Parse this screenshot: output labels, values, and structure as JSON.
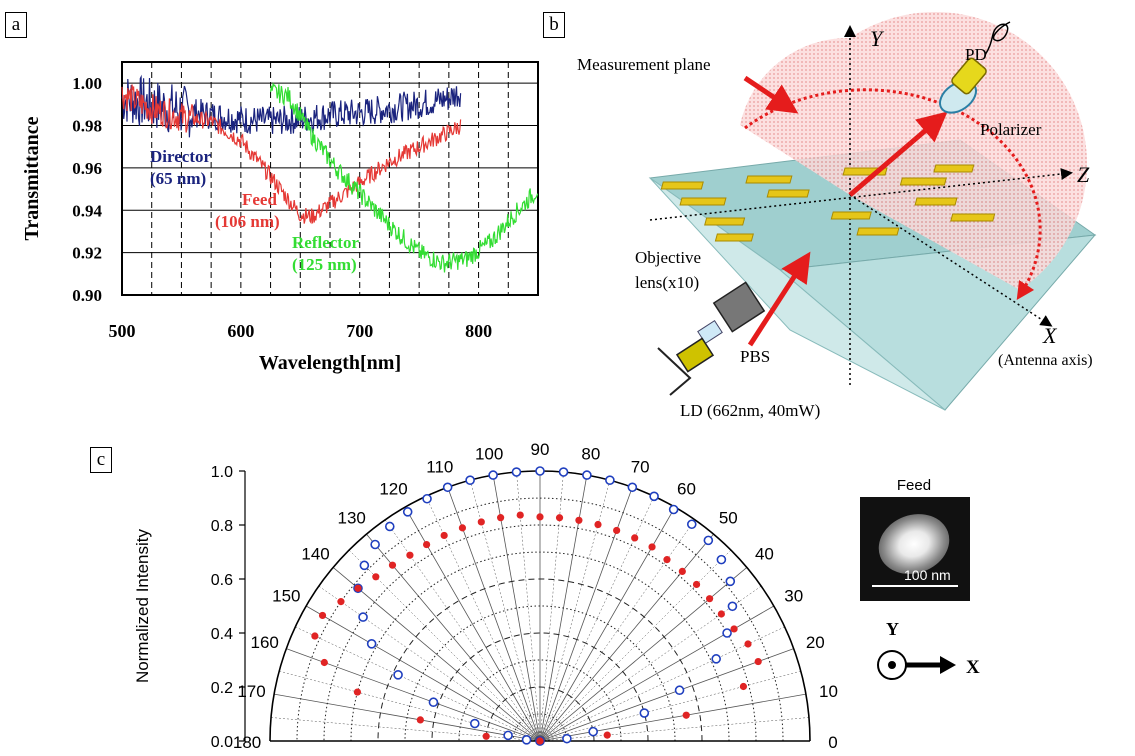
{
  "panels": {
    "a": {
      "label": "a",
      "chart_data": {
        "type": "line",
        "xlabel": "Wavelength[nm]",
        "ylabel": "Transmittance",
        "xlim": [
          500,
          850
        ],
        "ylim": [
          0.9,
          1.01
        ],
        "xticks": [
          "500",
          "600",
          "700",
          "800"
        ],
        "yticks": [
          "0.90",
          "0.92",
          "0.94",
          "0.96",
          "0.98",
          "1.00"
        ],
        "grid": true,
        "series": [
          {
            "name": "Director",
            "annotation": [
              "Director",
              "(65 nm)"
            ],
            "color": "#1a237e",
            "x": [
              500,
              525,
              550,
              575,
              600,
              625,
              650,
              675,
              700,
              725,
              750,
              775,
              785
            ],
            "y": [
              0.993,
              0.99,
              0.987,
              0.985,
              0.983,
              0.982,
              0.983,
              0.985,
              0.986,
              0.988,
              0.99,
              0.993,
              0.996
            ]
          },
          {
            "name": "Feed",
            "annotation": [
              "Feed",
              "(106 nm)"
            ],
            "color": "#e53935",
            "x": [
              500,
              525,
              550,
              575,
              600,
              625,
              640,
              650,
              660,
              675,
              700,
              725,
              750,
              775,
              785
            ],
            "y": [
              0.995,
              0.988,
              0.984,
              0.982,
              0.973,
              0.956,
              0.945,
              0.938,
              0.937,
              0.943,
              0.953,
              0.963,
              0.97,
              0.977,
              0.98
            ]
          },
          {
            "name": "Reflector",
            "annotation": [
              "Reflector",
              "(125 nm)"
            ],
            "color": "#33dd33",
            "x": [
              625,
              640,
              660,
              680,
              700,
              725,
              750,
              770,
              790,
              810,
              830,
              850
            ],
            "y": [
              0.996,
              0.994,
              0.975,
              0.96,
              0.948,
              0.933,
              0.92,
              0.915,
              0.917,
              0.925,
              0.938,
              0.95
            ]
          }
        ]
      }
    },
    "b": {
      "label": "b",
      "texts": {
        "measurement_plane": "Measurement plane",
        "y_axis": "Y",
        "z_axis": "Z",
        "x_axis": "X",
        "antenna_axis": "(Antenna axis)",
        "pd": "PD",
        "polarizer": "Polarizer",
        "objective_line1": "Objective",
        "objective_line2": "lens(x10)",
        "pbs": "PBS",
        "ld": "LD (662nm, 40mW)"
      },
      "colors": {
        "beam": "#e51c1c",
        "antenna": "#e6c619",
        "prism": "#a9d6d6",
        "plane": "#f5b3b3"
      }
    },
    "c": {
      "label": "c",
      "chart_data": {
        "type": "polar",
        "ylabel": "Normalized Intensity",
        "rlim": [
          0,
          1.0
        ],
        "rticks": [
          "0.0",
          "0.2",
          "0.4",
          "0.6",
          "0.8",
          "1.0"
        ],
        "angle_ticks": [
          "0",
          "10",
          "20",
          "30",
          "40",
          "50",
          "60",
          "70",
          "80",
          "90",
          "100",
          "110",
          "120",
          "130",
          "140",
          "150",
          "160",
          "170",
          "180"
        ],
        "series": [
          {
            "name": "open-circles",
            "marker": "open-circle",
            "color": "#1f3fbf",
            "angles": [
              0,
              5,
              10,
              15,
              20,
              25,
              30,
              35,
              40,
              45,
              50,
              55,
              60,
              65,
              70,
              75,
              80,
              85,
              90,
              95,
              100,
              105,
              110,
              115,
              120,
              125,
              130,
              135,
              140,
              145,
              150,
              155,
              160,
              165,
              170,
              175,
              180
            ],
            "r": [
              0.0,
              0.1,
              0.2,
              0.4,
              0.55,
              0.72,
              0.8,
              0.87,
              0.92,
              0.95,
              0.97,
              0.98,
              0.99,
              1.0,
              1.0,
              1.0,
              1.0,
              1.0,
              1.0,
              1.0,
              1.0,
              1.0,
              1.0,
              0.99,
              0.98,
              0.97,
              0.95,
              0.92,
              0.88,
              0.8,
              0.72,
              0.58,
              0.42,
              0.25,
              0.12,
              0.05,
              0.0
            ]
          },
          {
            "name": "filled-circles",
            "marker": "filled-circle",
            "color": "#e02424",
            "angles": [
              0,
              5,
              10,
              15,
              20,
              25,
              30,
              35,
              40,
              45,
              50,
              55,
              60,
              65,
              70,
              75,
              80,
              85,
              90,
              95,
              100,
              105,
              110,
              115,
              120,
              125,
              130,
              135,
              140,
              145,
              150,
              155,
              160,
              165,
              170,
              175,
              180
            ],
            "r": [
              0.0,
              0.25,
              0.55,
              0.78,
              0.86,
              0.85,
              0.83,
              0.82,
              0.82,
              0.82,
              0.82,
              0.82,
              0.83,
              0.83,
              0.83,
              0.83,
              0.83,
              0.83,
              0.83,
              0.84,
              0.84,
              0.84,
              0.84,
              0.84,
              0.84,
              0.84,
              0.85,
              0.86,
              0.88,
              0.9,
              0.93,
              0.92,
              0.85,
              0.7,
              0.45,
              0.2,
              0.0
            ]
          }
        ]
      },
      "inset": {
        "title": "Feed",
        "scale": "100 nm",
        "y_label": "Y",
        "x_label": "X"
      }
    }
  }
}
